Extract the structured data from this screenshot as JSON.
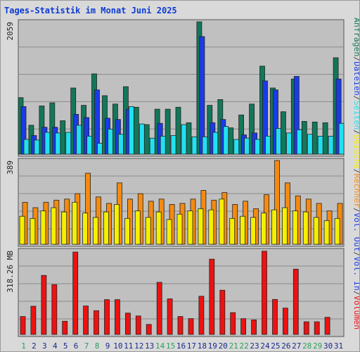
{
  "title": "Tages-Statistik im Monat Juni 2025",
  "colors": {
    "anfragen": "#13775a",
    "dateien": "#1a3be8",
    "seiten": "#22e0f0",
    "besuche": "#f4f000",
    "rechner": "#f58a10",
    "vol_out": "#1a3be8",
    "vol_in": "#1a3be8",
    "volumen": "#ee1111",
    "weekend_label": "#2aa05a",
    "weekday_label": "#1a2a8a",
    "plot_bg": "#c0c0c0",
    "frame_bg": "#d9d9d9"
  },
  "chart_data": [
    {
      "type": "bar",
      "panel": "top",
      "y_label": "2059",
      "ylim": [
        0,
        2059
      ],
      "grid": true,
      "categories": [
        "1",
        "2",
        "3",
        "4",
        "5",
        "6",
        "7",
        "8",
        "9",
        "10",
        "11",
        "12",
        "13",
        "14",
        "15",
        "16",
        "17",
        "18",
        "19",
        "20",
        "21",
        "22",
        "23",
        "24",
        "25",
        "26",
        "27",
        "28",
        "29",
        "30",
        "31"
      ],
      "weekend_days": [
        "1",
        "7",
        "8",
        "14",
        "15",
        "21",
        "22",
        "28",
        "29"
      ],
      "series": [
        {
          "name": "Anfragen",
          "values": [
            880,
            450,
            750,
            800,
            520,
            1030,
            760,
            1250,
            910,
            780,
            1050,
            730,
            460,
            700,
            700,
            730,
            490,
            2059,
            760,
            850,
            410,
            610,
            780,
            1370,
            1030,
            660,
            1170,
            510,
            500,
            490,
            1500
          ]
        },
        {
          "name": "Dateien",
          "values": [
            740,
            290,
            420,
            420,
            0,
            620,
            570,
            1000,
            560,
            540,
            700,
            0,
            0,
            480,
            0,
            0,
            0,
            1830,
            490,
            540,
            0,
            300,
            330,
            1140,
            1000,
            0,
            1210,
            0,
            0,
            0,
            1170
          ]
        },
        {
          "name": "Seiten",
          "values": [
            230,
            220,
            340,
            330,
            340,
            450,
            280,
            170,
            390,
            310,
            740,
            470,
            250,
            280,
            290,
            460,
            270,
            270,
            340,
            430,
            230,
            250,
            230,
            280,
            400,
            330,
            380,
            310,
            280,
            280,
            480
          ]
        }
      ]
    },
    {
      "type": "bar",
      "panel": "middle",
      "y_label": "389",
      "ylim": [
        0,
        389
      ],
      "grid": true,
      "categories": [
        "1",
        "2",
        "3",
        "4",
        "5",
        "6",
        "7",
        "8",
        "9",
        "10",
        "11",
        "12",
        "13",
        "14",
        "15",
        "16",
        "17",
        "18",
        "19",
        "20",
        "21",
        "22",
        "23",
        "24",
        "25",
        "26",
        "27",
        "28",
        "29",
        "30",
        "31"
      ],
      "series": [
        {
          "name": "Rechner",
          "values": [
            195,
            170,
            195,
            205,
            210,
            235,
            330,
            220,
            190,
            285,
            210,
            235,
            200,
            210,
            185,
            190,
            210,
            250,
            205,
            240,
            185,
            200,
            165,
            230,
            389,
            285,
            225,
            210,
            190,
            155,
            190
          ]
        },
        {
          "name": "Besuche",
          "values": [
            130,
            120,
            155,
            170,
            150,
            195,
            145,
            125,
            150,
            185,
            120,
            155,
            125,
            150,
            115,
            140,
            155,
            165,
            160,
            210,
            120,
            130,
            125,
            145,
            160,
            170,
            155,
            150,
            125,
            110,
            120
          ]
        }
      ]
    },
    {
      "type": "bar",
      "panel": "bottom",
      "y_label": "318.26 MB",
      "ylim": [
        0,
        318.26
      ],
      "grid": true,
      "categories": [
        "1",
        "2",
        "3",
        "4",
        "5",
        "6",
        "7",
        "8",
        "9",
        "10",
        "11",
        "12",
        "13",
        "14",
        "15",
        "16",
        "17",
        "18",
        "19",
        "20",
        "21",
        "22",
        "23",
        "24",
        "25",
        "26",
        "27",
        "28",
        "29",
        "30",
        "31"
      ],
      "series": [
        {
          "name": "Volumen",
          "values": [
            68,
            107,
            224,
            189,
            50,
            313,
            108,
            90,
            132,
            132,
            81,
            70,
            38,
            198,
            135,
            68,
            60,
            145,
            286,
            168,
            83,
            60,
            55,
            316,
            133,
            100,
            248,
            48,
            48,
            65,
            0
          ]
        }
      ]
    }
  ],
  "right_legend": [
    {
      "text": "Anfragen",
      "color_key": "anfragen"
    },
    {
      "text": "/",
      "color_key": "sep"
    },
    {
      "text": "Dateien",
      "color_key": "dateien"
    },
    {
      "text": "/",
      "color_key": "sep"
    },
    {
      "text": "Seiten",
      "color_key": "seiten"
    },
    {
      "text": "/",
      "color_key": "sep"
    },
    {
      "text": "Besuche",
      "color_key": "besuche"
    },
    {
      "text": "/",
      "color_key": "sep"
    },
    {
      "text": "Rechner",
      "color_key": "rechner"
    },
    {
      "text": "/",
      "color_key": "sep"
    },
    {
      "text": "Vol. Out",
      "color_key": "vol_out"
    },
    {
      "text": "/",
      "color_key": "sep"
    },
    {
      "text": "Vol. In",
      "color_key": "vol_in"
    },
    {
      "text": "/",
      "color_key": "sep"
    },
    {
      "text": "Volumen",
      "color_key": "volumen"
    }
  ]
}
